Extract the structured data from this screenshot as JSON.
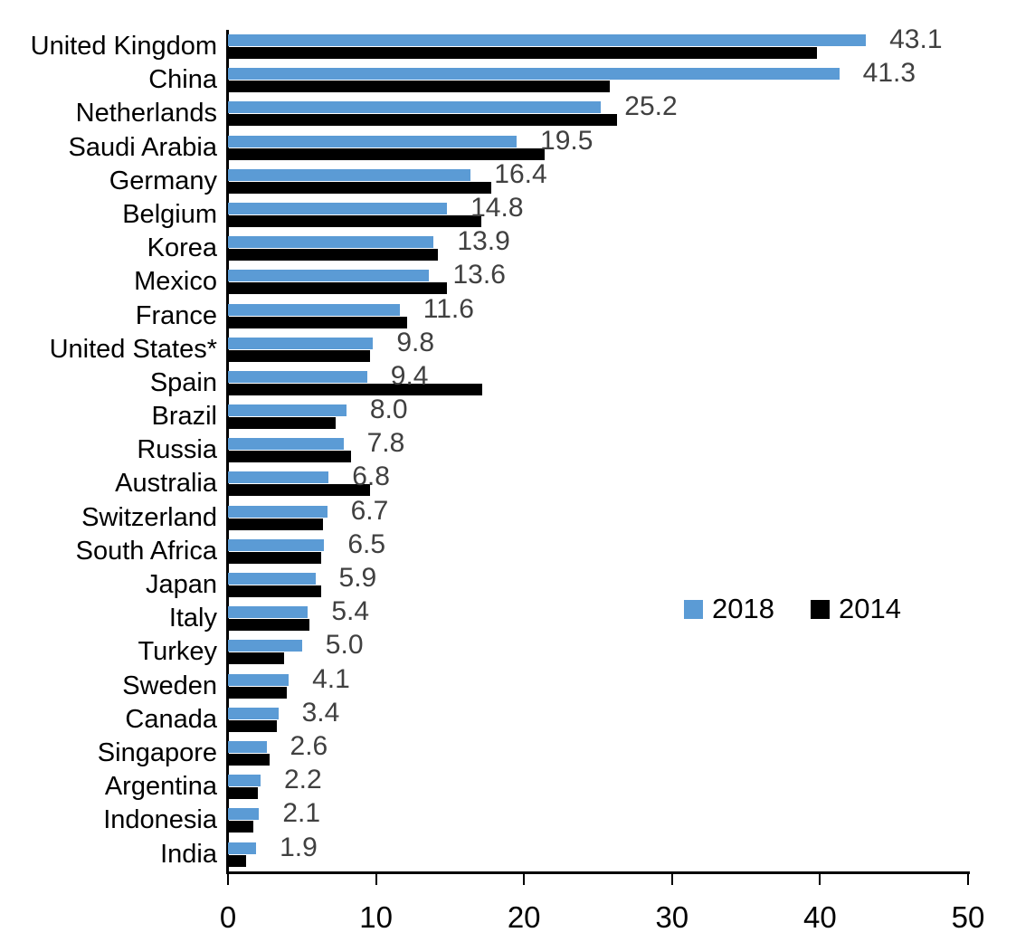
{
  "chart_data": {
    "type": "bar",
    "orientation": "horizontal",
    "title": "",
    "xlabel": "",
    "ylabel": "",
    "xlim": [
      0,
      50
    ],
    "x_ticks": [
      0,
      10,
      20,
      30,
      40,
      50
    ],
    "grid": false,
    "legend_position": "middle-right",
    "categories": [
      "United Kingdom",
      "China",
      "Netherlands",
      "Saudi Arabia",
      "Germany",
      "Belgium",
      "Korea",
      "Mexico",
      "France",
      "United States*",
      "Spain",
      "Brazil",
      "Russia",
      "Australia",
      "Switzerland",
      "South Africa",
      "Japan",
      "Italy",
      "Turkey",
      "Sweden",
      "Canada",
      "Singapore",
      "Argentina",
      "Indonesia",
      "India"
    ],
    "series": [
      {
        "name": "2018",
        "color": "#5B9BD5",
        "values": [
          43.1,
          41.3,
          25.2,
          19.5,
          16.4,
          14.8,
          13.9,
          13.6,
          11.6,
          9.8,
          9.4,
          8.0,
          7.8,
          6.8,
          6.7,
          6.5,
          5.9,
          5.4,
          5.0,
          4.1,
          3.4,
          2.6,
          2.2,
          2.1,
          1.9
        ],
        "data_labels": [
          "43.1",
          "41.3",
          "25.2",
          "19.5",
          "16.4",
          "14.8",
          "13.9",
          "13.6",
          "11.6",
          "9.8",
          "9.4",
          "8.0",
          "7.8",
          "6.8",
          "6.7",
          "6.5",
          "5.9",
          "5.4",
          "5.0",
          "4.1",
          "3.4",
          "2.6",
          "2.2",
          "2.1",
          "1.9"
        ]
      },
      {
        "name": "2014",
        "color": "#000000",
        "values": [
          39.8,
          25.8,
          26.3,
          21.4,
          17.8,
          17.1,
          14.2,
          14.8,
          12.1,
          9.6,
          17.2,
          7.3,
          8.3,
          9.6,
          6.4,
          6.3,
          6.3,
          5.5,
          3.8,
          4.0,
          3.3,
          2.8,
          2.0,
          1.7,
          1.2
        ],
        "data_labels": []
      }
    ]
  },
  "colors": {
    "bar_2018": "#5B9BD5",
    "bar_2014": "#000000",
    "value_label": "#404040",
    "axis": "#000000",
    "category_label": "#000000"
  },
  "legend": {
    "entries": [
      {
        "label": "2018",
        "color": "#5B9BD5"
      },
      {
        "label": "2014",
        "color": "#000000"
      }
    ]
  }
}
